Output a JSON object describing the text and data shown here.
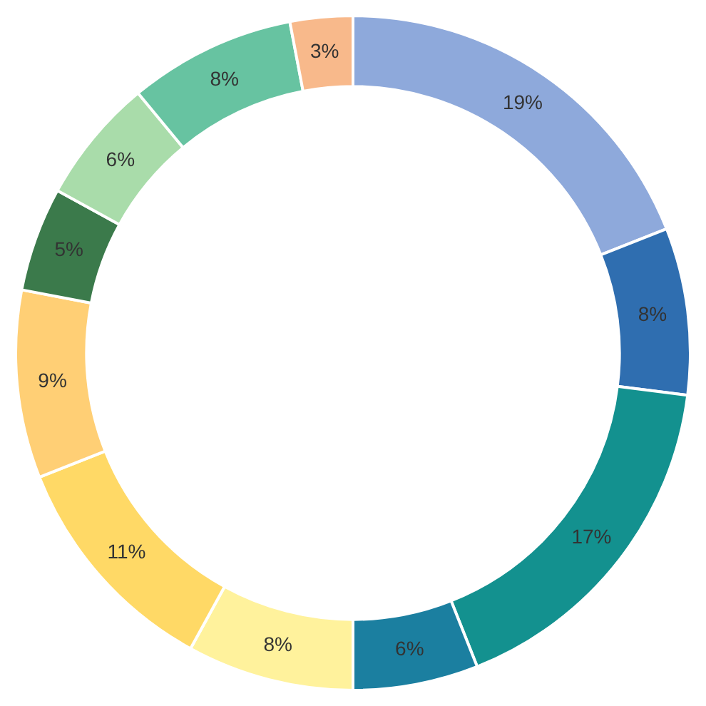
{
  "chart_data": {
    "type": "donut",
    "categories": [
      null,
      null,
      null,
      null,
      null,
      null,
      null,
      null,
      null,
      null,
      null
    ],
    "values": [
      19,
      8,
      17,
      6,
      8,
      11,
      9,
      5,
      6,
      8,
      3
    ],
    "colors": [
      "#8ea9db",
      "#2f6eb0",
      "#13918f",
      "#1b7fa0",
      "#fff29c",
      "#ffd966",
      "#ffcf75",
      "#3b7a4b",
      "#a9dcaa",
      "#67c3a1",
      "#f8b98b"
    ],
    "value_labels": [
      "19%",
      "8%",
      "17%",
      "6%",
      "8%",
      "11%",
      "9%",
      "5%",
      "6%",
      "8%",
      "3%"
    ],
    "legend": false
  }
}
